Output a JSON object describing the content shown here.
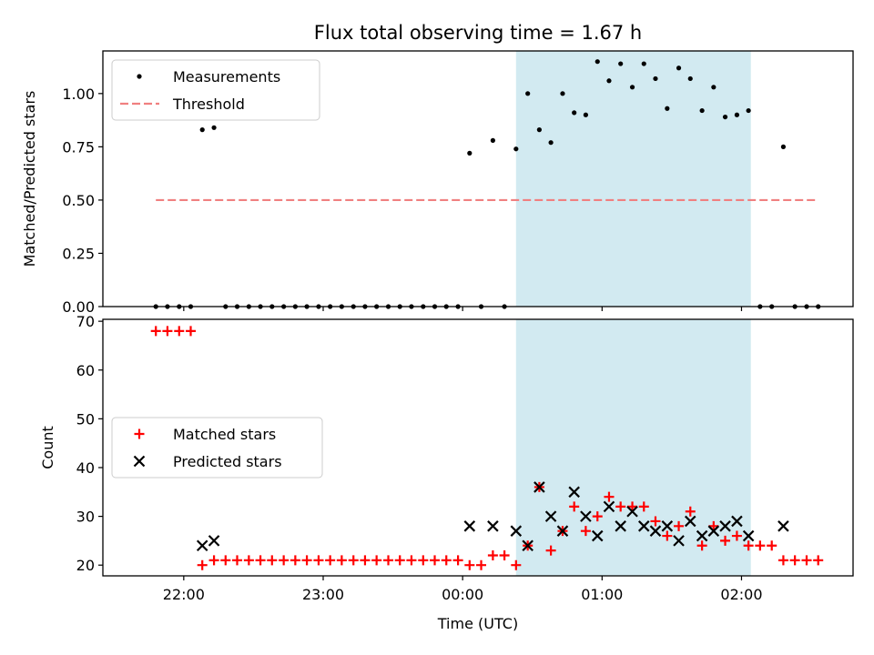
{
  "chart_data": {
    "type": "scatter",
    "title": "Flux total observing time = 1.67 h",
    "xlabel": "Time (UTC)",
    "x_unit": "hours UTC (values > 24 are after midnight)",
    "xlim": [
      21.42,
      26.8
    ],
    "xticks": [
      {
        "value": 22,
        "label": "22:00"
      },
      {
        "value": 23,
        "label": "23:00"
      },
      {
        "value": 24,
        "label": "00:00"
      },
      {
        "value": 25,
        "label": "01:00"
      },
      {
        "value": 26,
        "label": "02:00"
      }
    ],
    "highlight": {
      "x0": 24.383,
      "x1": 26.067,
      "color": "#add8e6"
    },
    "panels": [
      {
        "ylabel": "Matched/Predicted stars",
        "ylim": [
          0,
          1.2
        ],
        "yticks": [
          {
            "value": 0,
            "label": "0.00"
          },
          {
            "value": 0.25,
            "label": "0.25"
          },
          {
            "value": 0.5,
            "label": "0.50"
          },
          {
            "value": 0.75,
            "label": "0.75"
          },
          {
            "value": 1.0,
            "label": "1.00"
          }
        ],
        "legend": [
          "Measurements",
          "Threshold"
        ],
        "threshold": {
          "name": "Threshold",
          "value": 0.5,
          "x0": 21.8,
          "x1": 26.55,
          "color": "#f08080"
        },
        "series": [
          {
            "name": "Measurements",
            "marker": "dot",
            "color": "#000000",
            "points": [
              [
                21.8,
                0
              ],
              [
                21.883,
                0
              ],
              [
                21.967,
                0
              ],
              [
                22.05,
                0
              ],
              [
                22.133,
                0.83
              ],
              [
                22.217,
                0.84
              ],
              [
                22.3,
                0
              ],
              [
                22.383,
                0
              ],
              [
                22.467,
                0
              ],
              [
                22.55,
                0
              ],
              [
                22.633,
                0
              ],
              [
                22.717,
                0
              ],
              [
                22.8,
                0
              ],
              [
                22.883,
                0
              ],
              [
                22.967,
                0
              ],
              [
                23.05,
                0
              ],
              [
                23.133,
                0
              ],
              [
                23.217,
                0
              ],
              [
                23.3,
                0
              ],
              [
                23.383,
                0
              ],
              [
                23.467,
                0
              ],
              [
                23.55,
                0
              ],
              [
                23.633,
                0
              ],
              [
                23.717,
                0
              ],
              [
                23.8,
                0
              ],
              [
                23.883,
                0
              ],
              [
                23.967,
                0
              ],
              [
                24.05,
                0.72
              ],
              [
                24.133,
                0
              ],
              [
                24.217,
                0.78
              ],
              [
                24.3,
                0
              ],
              [
                24.383,
                0.74
              ],
              [
                24.467,
                1.0
              ],
              [
                24.55,
                0.83
              ],
              [
                24.633,
                0.77
              ],
              [
                24.717,
                1.0
              ],
              [
                24.8,
                0.91
              ],
              [
                24.883,
                0.9
              ],
              [
                24.967,
                1.15
              ],
              [
                25.05,
                1.06
              ],
              [
                25.133,
                1.14
              ],
              [
                25.217,
                1.03
              ],
              [
                25.3,
                1.14
              ],
              [
                25.383,
                1.07
              ],
              [
                25.467,
                0.93
              ],
              [
                25.55,
                1.12
              ],
              [
                25.633,
                1.07
              ],
              [
                25.717,
                0.92
              ],
              [
                25.8,
                1.03
              ],
              [
                25.883,
                0.89
              ],
              [
                25.967,
                0.9
              ],
              [
                26.05,
                0.92
              ],
              [
                26.133,
                0
              ],
              [
                26.217,
                0
              ],
              [
                26.3,
                0.75
              ],
              [
                26.383,
                0
              ],
              [
                26.467,
                0
              ],
              [
                26.55,
                0
              ]
            ]
          }
        ]
      },
      {
        "ylabel": "Count",
        "ylim": [
          17.8,
          70.4
        ],
        "yticks": [
          {
            "value": 20,
            "label": "20"
          },
          {
            "value": 30,
            "label": "30"
          },
          {
            "value": 40,
            "label": "40"
          },
          {
            "value": 50,
            "label": "50"
          },
          {
            "value": 60,
            "label": "60"
          },
          {
            "value": 70,
            "label": "70"
          }
        ],
        "legend": [
          "Matched stars",
          "Predicted stars"
        ],
        "series": [
          {
            "name": "Matched stars",
            "marker": "plus",
            "color": "#ff0000",
            "points": [
              [
                21.8,
                68
              ],
              [
                21.883,
                68
              ],
              [
                21.967,
                68
              ],
              [
                22.05,
                68
              ],
              [
                22.133,
                20
              ],
              [
                22.217,
                21
              ],
              [
                22.3,
                21
              ],
              [
                22.383,
                21
              ],
              [
                22.467,
                21
              ],
              [
                22.55,
                21
              ],
              [
                22.633,
                21
              ],
              [
                22.717,
                21
              ],
              [
                22.8,
                21
              ],
              [
                22.883,
                21
              ],
              [
                22.967,
                21
              ],
              [
                23.05,
                21
              ],
              [
                23.133,
                21
              ],
              [
                23.217,
                21
              ],
              [
                23.3,
                21
              ],
              [
                23.383,
                21
              ],
              [
                23.467,
                21
              ],
              [
                23.55,
                21
              ],
              [
                23.633,
                21
              ],
              [
                23.717,
                21
              ],
              [
                23.8,
                21
              ],
              [
                23.883,
                21
              ],
              [
                23.967,
                21
              ],
              [
                24.05,
                20
              ],
              [
                24.133,
                20
              ],
              [
                24.217,
                22
              ],
              [
                24.3,
                22
              ],
              [
                24.383,
                20
              ],
              [
                24.467,
                24
              ],
              [
                24.55,
                36
              ],
              [
                24.633,
                23
              ],
              [
                24.717,
                27
              ],
              [
                24.8,
                32
              ],
              [
                24.883,
                27
              ],
              [
                24.967,
                30
              ],
              [
                25.05,
                34
              ],
              [
                25.133,
                32
              ],
              [
                25.217,
                32
              ],
              [
                25.3,
                32
              ],
              [
                25.383,
                29
              ],
              [
                25.467,
                26
              ],
              [
                25.55,
                28
              ],
              [
                25.633,
                31
              ],
              [
                25.717,
                24
              ],
              [
                25.8,
                28
              ],
              [
                25.883,
                25
              ],
              [
                25.967,
                26
              ],
              [
                26.05,
                24
              ],
              [
                26.133,
                24
              ],
              [
                26.217,
                24
              ],
              [
                26.3,
                21
              ],
              [
                26.383,
                21
              ],
              [
                26.467,
                21
              ],
              [
                26.55,
                21
              ]
            ]
          },
          {
            "name": "Predicted stars",
            "marker": "x",
            "color": "#000000",
            "points": [
              [
                22.133,
                24
              ],
              [
                22.217,
                25
              ],
              [
                24.05,
                28
              ],
              [
                24.217,
                28
              ],
              [
                24.383,
                27
              ],
              [
                24.467,
                24
              ],
              [
                24.55,
                36
              ],
              [
                24.633,
                30
              ],
              [
                24.717,
                27
              ],
              [
                24.8,
                35
              ],
              [
                24.883,
                30
              ],
              [
                24.967,
                26
              ],
              [
                25.05,
                32
              ],
              [
                25.133,
                28
              ],
              [
                25.217,
                31
              ],
              [
                25.3,
                28
              ],
              [
                25.383,
                27
              ],
              [
                25.467,
                28
              ],
              [
                25.55,
                25
              ],
              [
                25.633,
                29
              ],
              [
                25.717,
                26
              ],
              [
                25.8,
                27
              ],
              [
                25.883,
                28
              ],
              [
                25.967,
                29
              ],
              [
                26.05,
                26
              ],
              [
                26.3,
                28
              ]
            ]
          }
        ]
      }
    ]
  }
}
